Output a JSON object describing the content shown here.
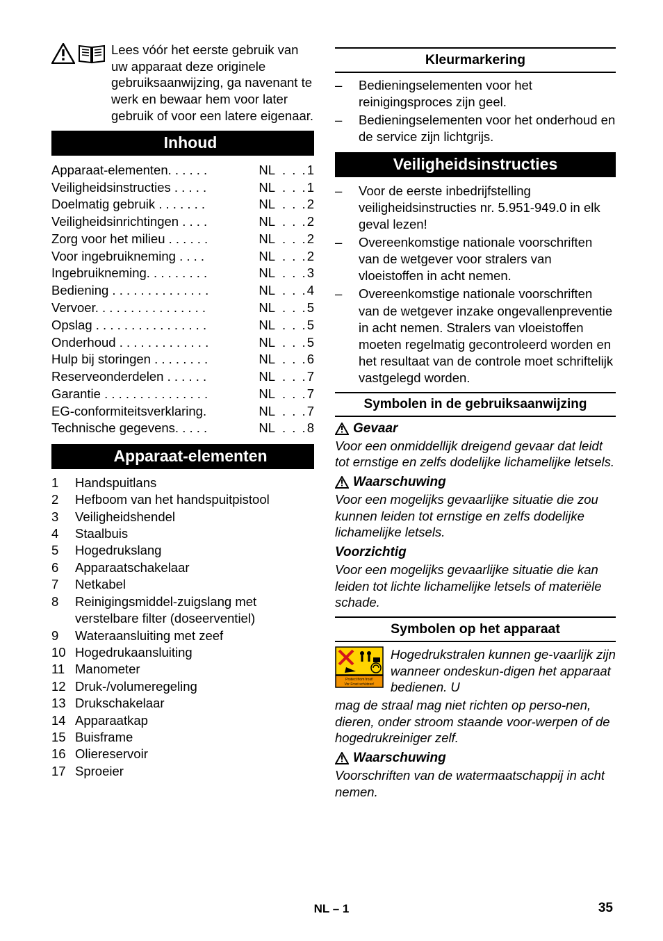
{
  "intro": {
    "text": "Lees vóór het eerste gebruik van uw apparaat deze originele gebruiksaanwijzing, ga navenant te werk en bewaar hem voor later gebruik of voor een latere eigenaar."
  },
  "headings": {
    "inhoud": "Inhoud",
    "apparaat_elementen": "Apparaat-elementen",
    "kleurmarkering": "Kleurmarkering",
    "veiligheidsinstructies": "Veiligheidsinstructies",
    "symbolen_gebruik": "Symbolen in de gebruiksaanwijzing",
    "symbolen_apparaat": "Symbolen op het apparaat"
  },
  "toc": [
    {
      "label": "Apparaat-elementen. . . . . .",
      "lang": "NL",
      "page": "1"
    },
    {
      "label": "Veiligheidsinstructies  . . . . .",
      "lang": "NL",
      "page": "1"
    },
    {
      "label": "Doelmatig gebruik  . . . . . . .",
      "lang": "NL",
      "page": "2"
    },
    {
      "label": "Veiligheidsinrichtingen . . . .",
      "lang": "NL",
      "page": "2"
    },
    {
      "label": "Zorg voor het milieu . . . . . .",
      "lang": "NL",
      "page": "2"
    },
    {
      "label": "Voor ingebruikneming  . . . .",
      "lang": "NL",
      "page": "2"
    },
    {
      "label": "Ingebruikneming. . . . . . . . .",
      "lang": "NL",
      "page": "3"
    },
    {
      "label": "Bediening . . . . . . . . . . . . . .",
      "lang": "NL",
      "page": "4"
    },
    {
      "label": "Vervoer. . . . . . . . . . . . . . . .",
      "lang": "NL",
      "page": "5"
    },
    {
      "label": "Opslag . . . . . . . . . . . . . . . .",
      "lang": "NL",
      "page": "5"
    },
    {
      "label": "Onderhoud . . . . . . . . . . . . .",
      "lang": "NL",
      "page": "5"
    },
    {
      "label": "Hulp bij storingen . . . . . . . .",
      "lang": "NL",
      "page": "6"
    },
    {
      "label": "Reserveonderdelen  . . . . . .",
      "lang": "NL",
      "page": "7"
    },
    {
      "label": "Garantie . . . . . . . . . . . . . . .",
      "lang": "NL",
      "page": "7"
    },
    {
      "label": "EG-conformiteitsverklaring.",
      "lang": "NL",
      "page": "7"
    },
    {
      "label": "Technische gegevens. . . . .",
      "lang": "NL",
      "page": "8"
    }
  ],
  "elements": [
    "Handspuitlans",
    "Hefboom van het handspuitpistool",
    "Veiligheidshendel",
    "Staalbuis",
    "Hogedrukslang",
    "Apparaatschakelaar",
    "Netkabel",
    "Reinigingsmiddel-zuigslang met verstelbare filter (doseerventiel)",
    "Wateraansluiting met zeef",
    "Hogedrukaansluiting",
    "Manometer",
    "Druk-/volumeregeling",
    "Drukschakelaar",
    "Apparaatkap",
    "Buisframe",
    "Oliereservoir",
    "Sproeier"
  ],
  "kleurmarkering_items": [
    "Bedieningselementen voor het reinigingsproces zijn geel.",
    "Bedieningselementen voor het onderhoud en de service zijn lichtgrijs."
  ],
  "veiligheid_items": [
    "Voor de eerste inbedrijfstelling veiligheidsinstructies nr. 5.951-949.0 in elk geval lezen!",
    "Overeenkomstige nationale voorschriften van de wetgever voor stralers van vloeistoffen in acht nemen.",
    "Overeenkomstige nationale voorschriften van de wetgever inzake ongevallenpreventie in acht nemen. Stralers van vloeistoffen moeten regelmatig gecontroleerd worden en het resultaat van de controle moet schriftelijk vastgelegd worden."
  ],
  "symbols": {
    "gevaar_label": "Gevaar",
    "gevaar_text": "Voor een onmiddellijk dreigend gevaar dat leidt tot ernstige en zelfs dodelijke lichamelijke letsels.",
    "waarschuwing_label": "Waarschuwing",
    "waarschuwing_text": "Voor een mogelijks gevaarlijke situatie die zou kunnen leiden tot ernstige en zelfs dodelijke lichamelijke letsels.",
    "voorzichtig_label": "Voorzichtig",
    "voorzichtig_text": "Voor een mogelijks gevaarlijke situatie die kan leiden tot lichte lichamelijke letsels of materiële schade."
  },
  "apparaat_symbol": {
    "text1": "Hogedrukstralen kunnen ge-vaarlijk zijn wanneer ondeskun-digen het apparaat bedienen. U",
    "text2": "mag de straal mag niet richten op perso-nen, dieren, onder stroom staande voor-werpen of de hogedrukreiniger zelf.",
    "waarschuwing2_text": "Voorschriften van de watermaatschappij in acht nemen."
  },
  "footer": {
    "center": "NL – 1",
    "page": "35"
  },
  "colors": {
    "black": "#000000",
    "white": "#ffffff",
    "yellow": "#ffd400",
    "red": "#d4151b",
    "orange": "#f39200",
    "blue": "#1e5aa8"
  }
}
